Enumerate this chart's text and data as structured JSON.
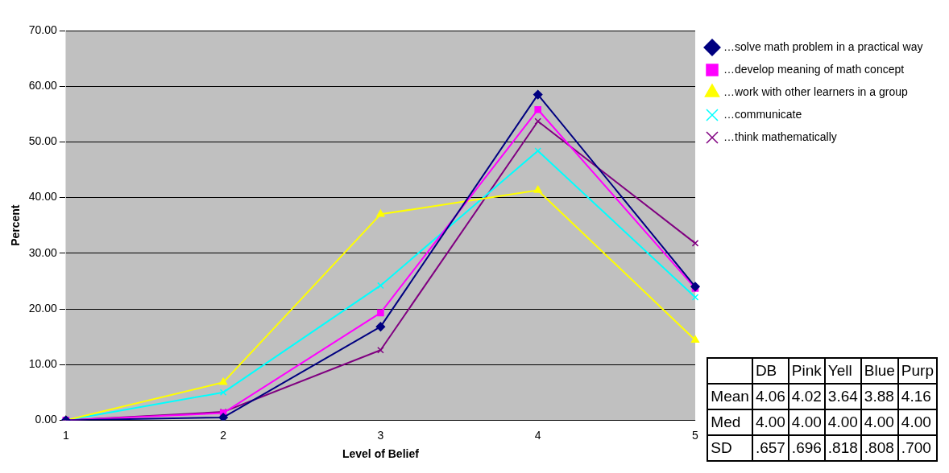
{
  "chart_data": [
    {
      "type": "line",
      "xlabel": "Level of Belief",
      "ylabel": "Percent",
      "categories": [
        "1",
        "2",
        "3",
        "4",
        "5"
      ],
      "ylim": [
        0,
        70
      ],
      "yticks": [
        {
          "value": 0,
          "label": "0.00"
        },
        {
          "value": 10,
          "label": "10.00"
        },
        {
          "value": 20,
          "label": "20.00"
        },
        {
          "value": 30,
          "label": "30.00"
        },
        {
          "value": 40,
          "label": "40.00"
        },
        {
          "value": 50,
          "label": "50.00"
        },
        {
          "value": 60,
          "label": "60.00"
        },
        {
          "value": 70,
          "label": "70.00"
        }
      ],
      "grid": "y",
      "legend": "right",
      "series": [
        {
          "name": "…solve math problem in a practical way",
          "color": "#000080",
          "marker": "diamond",
          "values": [
            0,
            0.5,
            16.8,
            58.5,
            24
          ]
        },
        {
          "name": "…develop meaning of math concept",
          "color": "#ff00ff",
          "marker": "square",
          "values": [
            0,
            1.3,
            19.3,
            55.8,
            23.7
          ]
        },
        {
          "name": "…work with other learners in a group",
          "color": "#ffff00",
          "marker": "triangle",
          "values": [
            0,
            6.8,
            37,
            41.3,
            14.4
          ]
        },
        {
          "name": "…communicate",
          "color": "#00ffff",
          "marker": "cross",
          "values": [
            0,
            5,
            24.2,
            48.4,
            22.1
          ]
        },
        {
          "name": "…think mathematically",
          "color": "#800080",
          "marker": "cross",
          "values": [
            0,
            1.5,
            12.6,
            53.7,
            31.8
          ]
        }
      ]
    },
    {
      "type": "other",
      "categories": [
        "DB",
        "Pink",
        "Yell",
        "Blue",
        "Purp"
      ],
      "y_categories": [
        "Mean",
        "Med",
        "SD"
      ],
      "cell_labels": [
        [
          "4.06",
          "4.02",
          "3.64",
          "3.88",
          "4.16"
        ],
        [
          "4.00",
          "4.00",
          "4.00",
          "4.00",
          "4.00"
        ],
        [
          ".657",
          ".696",
          ".818",
          ".808",
          ".700"
        ]
      ]
    }
  ]
}
